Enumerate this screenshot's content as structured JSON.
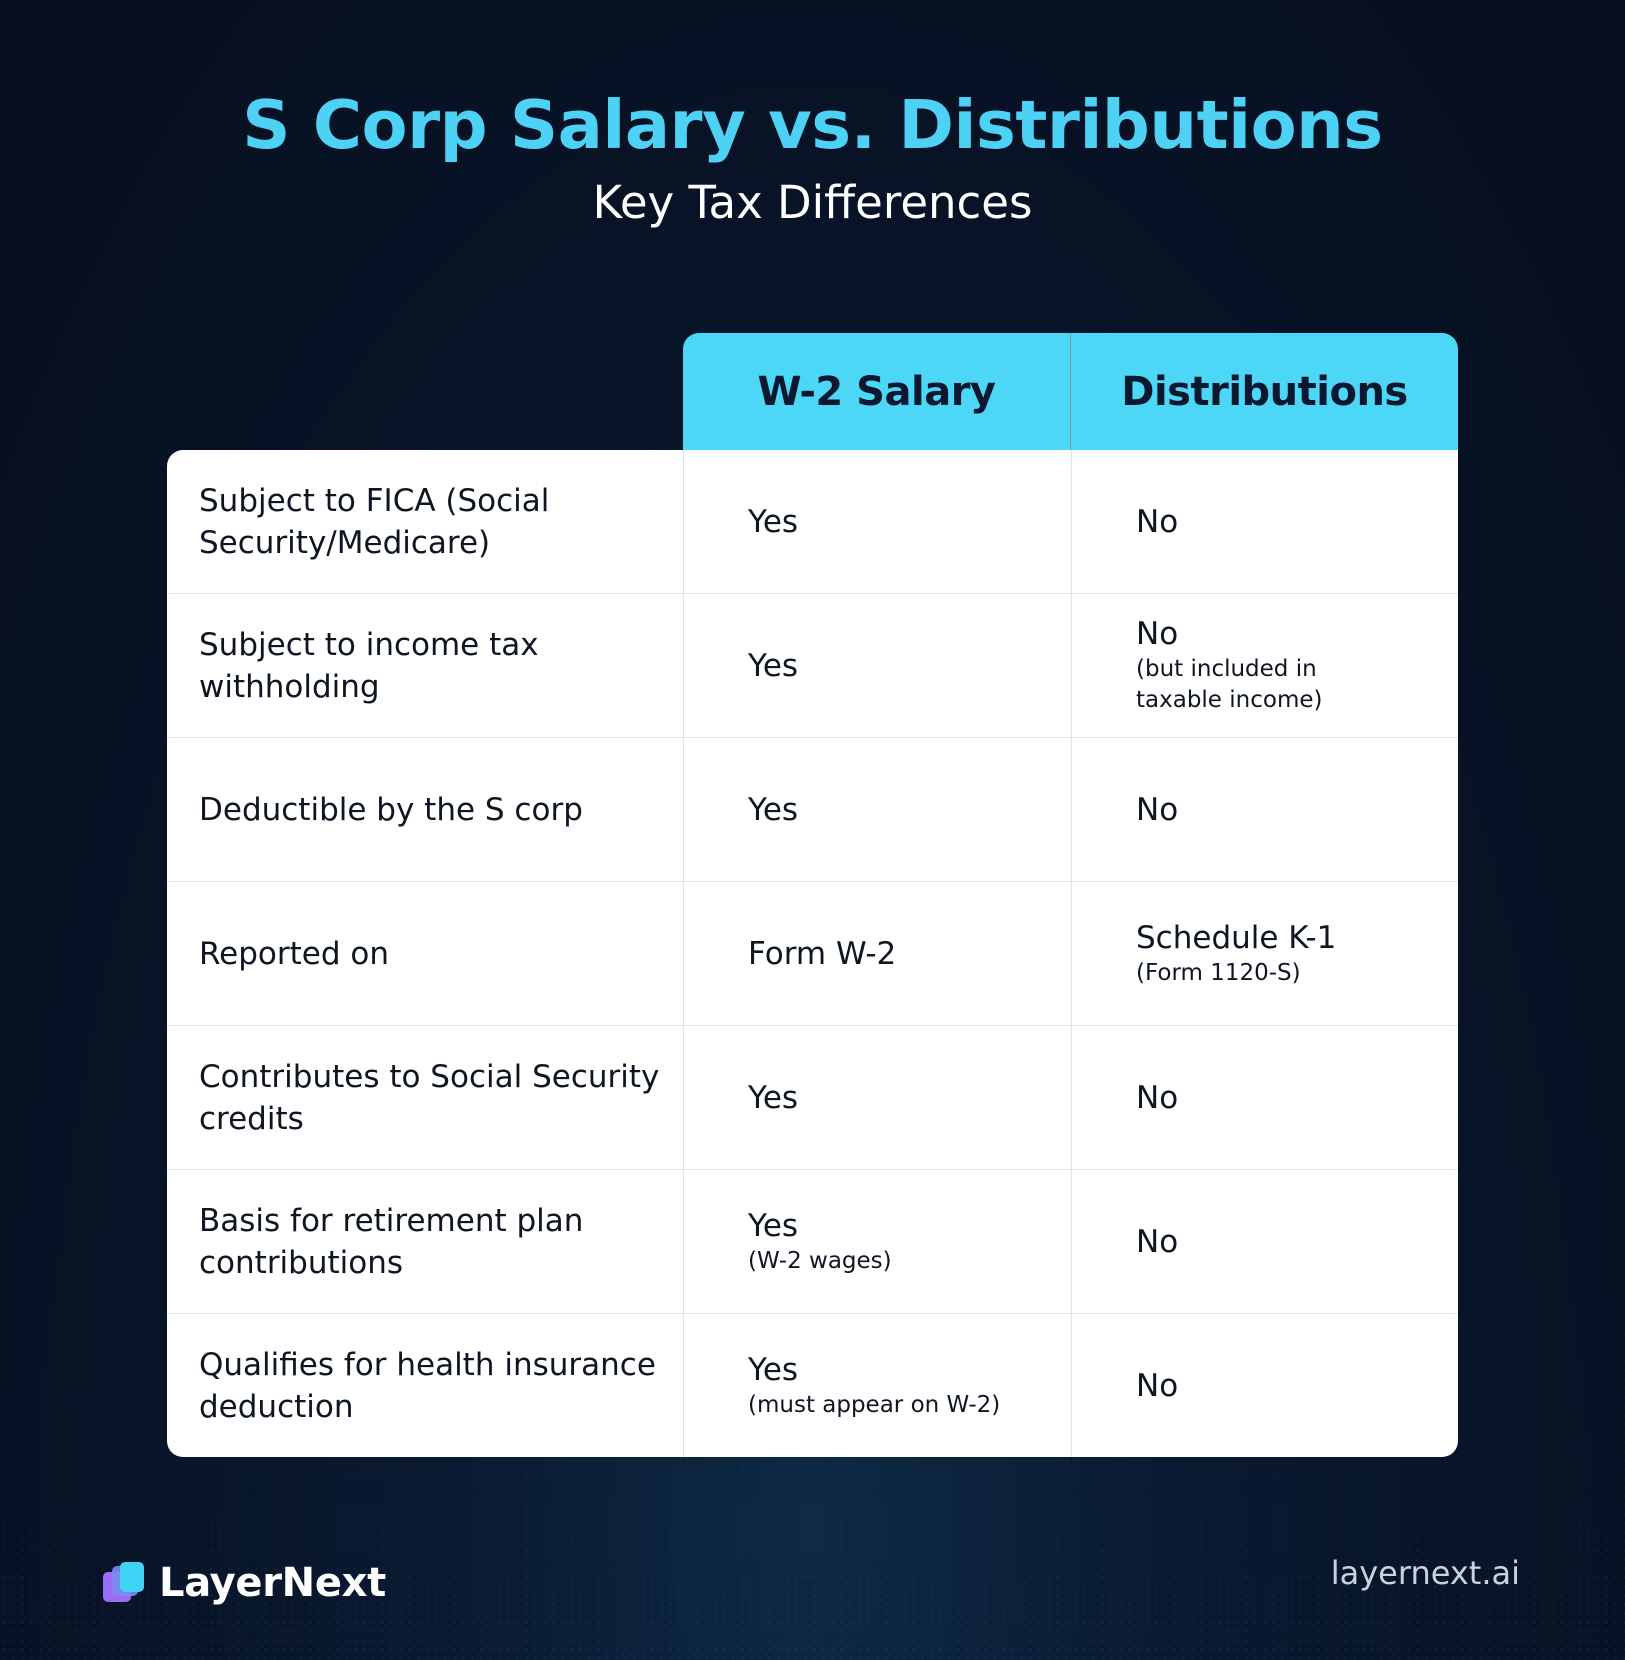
{
  "header": {
    "title": "S Corp Salary vs. Distributions",
    "subtitle": "Key Tax Differences"
  },
  "table": {
    "columns": [
      "W-2 Salary",
      "Distributions"
    ],
    "rows": [
      {
        "label": "Subject to FICA (Social Security/Medicare)",
        "salary": "Yes",
        "salary_note": "",
        "dist": "No",
        "dist_note": ""
      },
      {
        "label": "Subject to income tax withholding",
        "salary": "Yes",
        "salary_note": "",
        "dist": "No",
        "dist_note": "(but included in taxable income)"
      },
      {
        "label": "Deductible by the S corp",
        "salary": "Yes",
        "salary_note": "",
        "dist": "No",
        "dist_note": ""
      },
      {
        "label": "Reported on",
        "salary": "Form W-2",
        "salary_note": "",
        "dist": "Schedule K-1",
        "dist_note": "(Form 1120-S)"
      },
      {
        "label": "Contributes to Social Security credits",
        "salary": "Yes",
        "salary_note": "",
        "dist": "No",
        "dist_note": ""
      },
      {
        "label": "Basis for retirement plan contributions",
        "salary": "Yes",
        "salary_note": "(W-2 wages)",
        "dist": "No",
        "dist_note": ""
      },
      {
        "label": "Qualifies for health insurance deduction",
        "salary": "Yes",
        "salary_note": "(must appear on W-2)",
        "dist": "No",
        "dist_note": ""
      }
    ]
  },
  "footer": {
    "brand": "LayerNext",
    "website": "layernext.ai",
    "logo_icon": "stacked-layers-icon"
  },
  "colors": {
    "accent": "#4dd2f5",
    "header_fill": "#4dd7f6",
    "background": "#081428"
  }
}
